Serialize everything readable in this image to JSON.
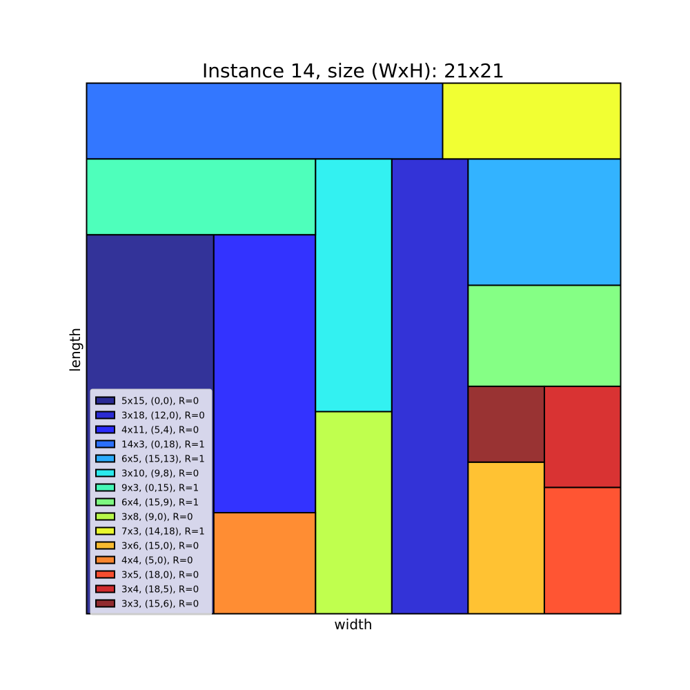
{
  "chart_data": {
    "type": "rectangle-packing",
    "title": "Instance 14, size (WxH): 21x21",
    "xlabel": "width",
    "ylabel": "length",
    "xlim": [
      0,
      21
    ],
    "ylim": [
      0,
      21
    ],
    "legend_position": "lower-left",
    "rectangles": [
      {
        "label": "5x15, (0,0), R=0",
        "x": 0,
        "y": 0,
        "w": 5,
        "h": 15,
        "color": "#000080"
      },
      {
        "label": "3x18, (12,0), R=0",
        "x": 12,
        "y": 0,
        "w": 3,
        "h": 18,
        "color": "#0000cd"
      },
      {
        "label": "4x11, (5,4), R=0",
        "x": 5,
        "y": 4,
        "w": 4,
        "h": 11,
        "color": "#0000ff"
      },
      {
        "label": "14x3, (0,18), R=1",
        "x": 0,
        "y": 18,
        "w": 14,
        "h": 3,
        "color": "#0055ff"
      },
      {
        "label": "6x5, (15,13), R=1",
        "x": 15,
        "y": 13,
        "w": 6,
        "h": 5,
        "color": "#00a0ff"
      },
      {
        "label": "3x10, (9,8), R=0",
        "x": 9,
        "y": 8,
        "w": 3,
        "h": 10,
        "color": "#00eeee"
      },
      {
        "label": "9x3, (0,15), R=1",
        "x": 0,
        "y": 15,
        "w": 9,
        "h": 3,
        "color": "#22ffaa"
      },
      {
        "label": "6x4, (15,9), R=1",
        "x": 15,
        "y": 9,
        "w": 6,
        "h": 4,
        "color": "#66ff66"
      },
      {
        "label": "3x8, (9,0), R=0",
        "x": 9,
        "y": 0,
        "w": 3,
        "h": 8,
        "color": "#b0ff22"
      },
      {
        "label": "7x3, (14,18), R=1",
        "x": 14,
        "y": 18,
        "w": 7,
        "h": 3,
        "color": "#eeff00"
      },
      {
        "label": "3x6, (15,0), R=0",
        "x": 15,
        "y": 0,
        "w": 3,
        "h": 6,
        "color": "#ffb300"
      },
      {
        "label": "4x4, (5,0), R=0",
        "x": 5,
        "y": 0,
        "w": 4,
        "h": 4,
        "color": "#ff7000"
      },
      {
        "label": "3x5, (18,0), R=0",
        "x": 18,
        "y": 0,
        "w": 3,
        "h": 5,
        "color": "#ff2a00"
      },
      {
        "label": "3x4, (18,5), R=0",
        "x": 18,
        "y": 5,
        "w": 3,
        "h": 4,
        "color": "#d00000"
      },
      {
        "label": "3x3, (15,6), R=0",
        "x": 15,
        "y": 6,
        "w": 3,
        "h": 3,
        "color": "#800000"
      }
    ]
  }
}
